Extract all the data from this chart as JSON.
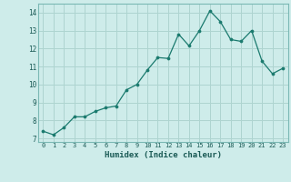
{
  "x": [
    0,
    1,
    2,
    3,
    4,
    5,
    6,
    7,
    8,
    9,
    10,
    11,
    12,
    13,
    14,
    15,
    16,
    17,
    18,
    19,
    20,
    21,
    22,
    23
  ],
  "y": [
    7.4,
    7.2,
    7.6,
    8.2,
    8.2,
    8.5,
    8.7,
    8.8,
    9.7,
    10.0,
    10.8,
    11.5,
    11.45,
    12.8,
    12.15,
    13.0,
    14.1,
    13.5,
    12.5,
    12.4,
    13.0,
    11.3,
    10.6,
    10.9
  ],
  "line_color": "#1a7a6e",
  "marker_color": "#1a7a6e",
  "bg_color": "#ceecea",
  "grid_color": "#aed4d0",
  "xlabel": "Humidex (Indice chaleur)",
  "xlim": [
    -0.5,
    23.5
  ],
  "ylim": [
    6.8,
    14.5
  ],
  "yticks": [
    7,
    8,
    9,
    10,
    11,
    12,
    13,
    14
  ],
  "xticks": [
    0,
    1,
    2,
    3,
    4,
    5,
    6,
    7,
    8,
    9,
    10,
    11,
    12,
    13,
    14,
    15,
    16,
    17,
    18,
    19,
    20,
    21,
    22,
    23
  ]
}
